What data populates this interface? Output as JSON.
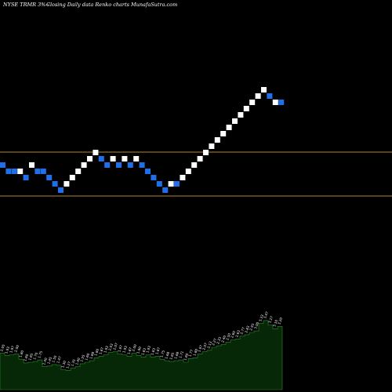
{
  "header": {
    "ticker": "NYSE TRMR 3%~",
    "description": "Closing Daily data  Renko  charts MunafaSutra.com"
  },
  "colors": {
    "background": "#000000",
    "up_brick": "#ffffff",
    "down_brick": "#1e6fe8",
    "level_line": "#b8862a",
    "volume_fill": "#062806",
    "volume_outline": "#2f8a2f"
  },
  "chart_data": {
    "type": "renko",
    "title": "",
    "xlabel": "",
    "ylabel": "",
    "levels": [
      -5,
      2
    ],
    "bricks": [
      {
        "dir": "down",
        "level": 0
      },
      {
        "dir": "down",
        "level": -1
      },
      {
        "dir": "down",
        "level": -1
      },
      {
        "dir": "up",
        "level": -1
      },
      {
        "dir": "down",
        "level": -2
      },
      {
        "dir": "up",
        "level": 0
      },
      {
        "dir": "down",
        "level": -1
      },
      {
        "dir": "down",
        "level": -1
      },
      {
        "dir": "down",
        "level": -2
      },
      {
        "dir": "down",
        "level": -3
      },
      {
        "dir": "down",
        "level": -4
      },
      {
        "dir": "up",
        "level": -3
      },
      {
        "dir": "up",
        "level": -2
      },
      {
        "dir": "up",
        "level": -1
      },
      {
        "dir": "up",
        "level": 0
      },
      {
        "dir": "up",
        "level": 1
      },
      {
        "dir": "up",
        "level": 2
      },
      {
        "dir": "down",
        "level": 1
      },
      {
        "dir": "down",
        "level": 0
      },
      {
        "dir": "up",
        "level": 1
      },
      {
        "dir": "down",
        "level": 0
      },
      {
        "dir": "up",
        "level": 1
      },
      {
        "dir": "down",
        "level": 0
      },
      {
        "dir": "up",
        "level": 1
      },
      {
        "dir": "down",
        "level": 0
      },
      {
        "dir": "down",
        "level": -1
      },
      {
        "dir": "down",
        "level": -2
      },
      {
        "dir": "down",
        "level": -3
      },
      {
        "dir": "down",
        "level": -4
      },
      {
        "dir": "up",
        "level": -3
      },
      {
        "dir": "down",
        "level": -3
      },
      {
        "dir": "up",
        "level": -2
      },
      {
        "dir": "up",
        "level": -1
      },
      {
        "dir": "up",
        "level": 0
      },
      {
        "dir": "up",
        "level": 1
      },
      {
        "dir": "up",
        "level": 2
      },
      {
        "dir": "up",
        "level": 3
      },
      {
        "dir": "up",
        "level": 4
      },
      {
        "dir": "up",
        "level": 5
      },
      {
        "dir": "up",
        "level": 6
      },
      {
        "dir": "up",
        "level": 7
      },
      {
        "dir": "up",
        "level": 8
      },
      {
        "dir": "up",
        "level": 9
      },
      {
        "dir": "up",
        "level": 10
      },
      {
        "dir": "up",
        "level": 11
      },
      {
        "dir": "up",
        "level": 12
      },
      {
        "dir": "down",
        "level": 11
      },
      {
        "dir": "up",
        "level": 10
      },
      {
        "dir": "down",
        "level": 10
      }
    ],
    "volume": {
      "values": [
        32,
        29,
        30,
        31,
        24,
        19,
        20,
        21,
        23,
        14,
        15,
        17,
        16,
        10,
        9,
        12,
        14,
        18,
        20,
        22,
        26,
        28,
        30,
        33,
        34,
        31,
        30,
        28,
        32,
        29,
        27,
        30,
        27,
        28,
        24,
        22,
        21,
        22,
        23,
        20,
        25,
        26,
        31,
        34,
        36,
        40,
        42,
        44,
        47,
        50,
        51,
        55,
        57,
        60,
        62,
        72,
        76,
        70,
        65,
        68
      ],
      "labels": [
        "2.05",
        "1.93",
        "1.97",
        "2.00",
        "1.80",
        "1.60",
        "1.65",
        "1.70",
        "1.75",
        "1.40",
        "1.45",
        "1.50",
        "1.47",
        "1.30",
        "1.27",
        "1.35",
        "1.40",
        "1.55",
        "1.60",
        "1.68",
        "1.80",
        "1.87",
        "1.93",
        "2.03",
        "2.07",
        "1.97",
        "1.93",
        "1.87",
        "2.00",
        "1.90",
        "1.83",
        "1.93",
        "1.83",
        "1.87",
        "1.75",
        "1.68",
        "1.65",
        "1.68",
        "1.71",
        "1.60",
        "1.77",
        "1.80",
        "1.97",
        "2.07",
        "2.13",
        "2.27",
        "2.33",
        "2.40",
        "2.50",
        "2.60",
        "2.63",
        "2.77",
        "2.83",
        "2.93",
        "3.00",
        "3.33",
        "3.47",
        "3.27",
        "3.10",
        "3.20"
      ]
    }
  }
}
